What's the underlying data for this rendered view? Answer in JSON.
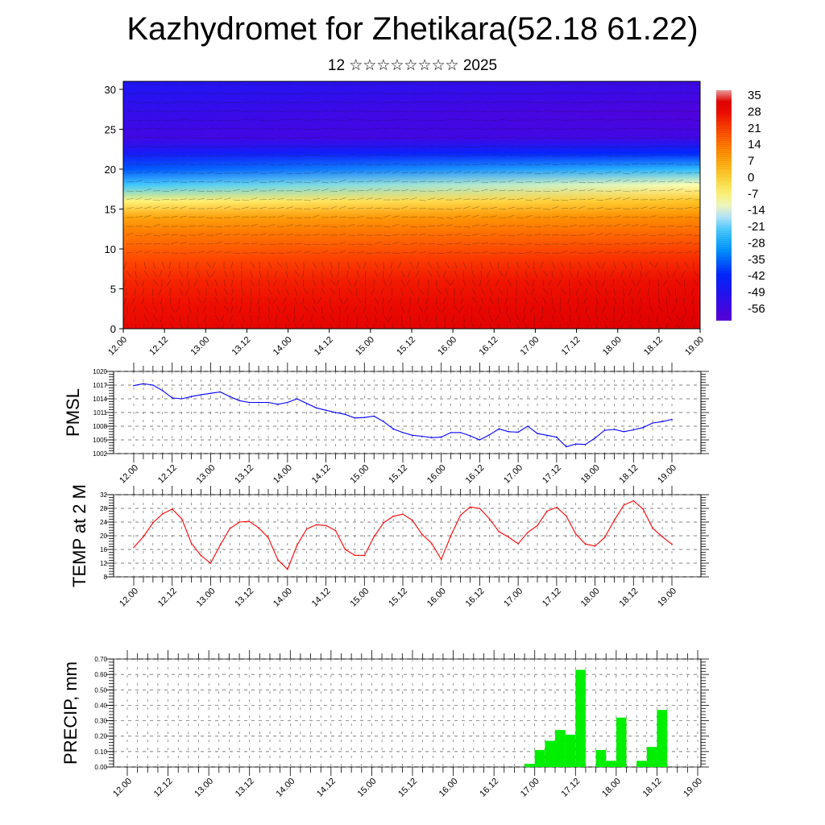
{
  "title": "Kazhydromet for Zhetikara(52.18 61.22)",
  "subtitle": "12 ☆☆☆☆☆☆☆☆ 2025",
  "colors": {
    "pmsl_line": "#0000ff",
    "temp_line": "#ff0000",
    "precip_bar": "#00ee00",
    "grid": "#555555"
  },
  "chart_data": [
    {
      "type": "heatmap",
      "y_ticks": [
        "0",
        "5",
        "10",
        "15",
        "20",
        "25",
        "30"
      ],
      "ylim": [
        0,
        31
      ],
      "x_ticks": [
        "12.00",
        "12.12",
        "13.00",
        "13.12",
        "14.00",
        "14.12",
        "15.00",
        "15.12",
        "16.00",
        "16.12",
        "17.00",
        "17.12",
        "18.00",
        "18.12",
        "19.00"
      ],
      "colorbar_labels": [
        "35",
        "28",
        "21",
        "14",
        "7",
        "0",
        "-7",
        "-14",
        "-21",
        "-28",
        "-35",
        "-42",
        "-49",
        "-56"
      ],
      "colorbar_range": [
        -60,
        38
      ],
      "levels_y": [
        0,
        3,
        6,
        9,
        12,
        14,
        16,
        18,
        20,
        22,
        24,
        27,
        30
      ],
      "values_left": [
        31,
        28,
        25,
        20,
        14,
        8,
        -6,
        -22,
        -36,
        -46,
        -55,
        -52,
        -48
      ],
      "values_right": [
        34,
        32,
        29,
        24,
        17,
        12,
        3,
        -10,
        -24,
        -40,
        -55,
        -58,
        -54
      ]
    },
    {
      "type": "line",
      "ylabel": "PMSL",
      "y_ticks": [
        "1002",
        "1005",
        "1008",
        "1011",
        "1014",
        "1017",
        "1020"
      ],
      "ylim": [
        1002,
        1020
      ],
      "x_ticks": [
        "12.00",
        "12.12",
        "13.00",
        "13.12",
        "14.00",
        "14.12",
        "15.00",
        "15.12",
        "16.00",
        "16.12",
        "17.00",
        "17.12",
        "18.00",
        "18.12",
        "19.00"
      ],
      "x_step_hours": 3,
      "values": [
        1016.9,
        1017.3,
        1017.0,
        1015.8,
        1014.2,
        1014.0,
        1014.5,
        1014.9,
        1015.2,
        1015.5,
        1014.5,
        1013.6,
        1013.2,
        1013.2,
        1013.2,
        1012.8,
        1013.2,
        1014.0,
        1013.0,
        1012.0,
        1011.5,
        1011.0,
        1010.6,
        1009.8,
        1009.9,
        1010.2,
        1009.0,
        1007.4,
        1006.6,
        1006.0,
        1005.8,
        1005.5,
        1005.6,
        1006.6,
        1006.6,
        1005.9,
        1005.0,
        1006.1,
        1007.4,
        1006.8,
        1006.7,
        1008.0,
        1006.4,
        1006.0,
        1005.6,
        1003.5,
        1004.1,
        1004.0,
        1005.4,
        1007.1,
        1007.3,
        1006.8,
        1007.2,
        1007.7,
        1008.7,
        1009.0,
        1009.5
      ]
    },
    {
      "type": "line",
      "ylabel": "TEMP at 2 M",
      "y_ticks": [
        "8",
        "12",
        "16",
        "20",
        "24",
        "28",
        "32"
      ],
      "ylim": [
        8,
        32
      ],
      "x_ticks": [
        "12.00",
        "12.12",
        "13.00",
        "13.12",
        "14.00",
        "14.12",
        "15.00",
        "15.12",
        "16.00",
        "16.12",
        "17.00",
        "17.12",
        "18.00",
        "18.12",
        "19.00"
      ],
      "x_step_hours": 3,
      "values": [
        16.6,
        19.7,
        23.8,
        26.4,
        27.8,
        25.0,
        17.8,
        14.2,
        12.0,
        17.3,
        22.1,
        24.0,
        24.2,
        22.3,
        19.4,
        13.0,
        10.2,
        17.3,
        22.0,
        23.2,
        23.0,
        21.5,
        16.0,
        14.3,
        14.2,
        19.7,
        23.8,
        25.7,
        26.3,
        24.5,
        20.4,
        17.8,
        13.1,
        20.0,
        26.0,
        28.4,
        28.0,
        25.0,
        21.2,
        19.6,
        17.7,
        21.0,
        23.0,
        27.2,
        28.3,
        25.8,
        20.5,
        17.6,
        17.0,
        19.5,
        24.5,
        29.0,
        30.2,
        27.8,
        22.2,
        19.7,
        17.5
      ]
    },
    {
      "type": "bar",
      "ylabel": "PRECIP, mm",
      "y_ticks": [
        "0.00",
        "0.10",
        "0.20",
        "0.30",
        "0.40",
        "0.50",
        "0.60",
        "0.70"
      ],
      "ylim": [
        0,
        0.7
      ],
      "x_ticks": [
        "12.00",
        "12.12",
        "13.00",
        "13.12",
        "14.00",
        "14.12",
        "15.00",
        "15.12",
        "16.00",
        "16.12",
        "17.00",
        "17.12",
        "18.00",
        "18.12",
        "19.00"
      ],
      "x_step_hours": 3,
      "values": [
        0,
        0,
        0,
        0,
        0,
        0,
        0,
        0,
        0,
        0,
        0,
        0,
        0,
        0,
        0,
        0,
        0,
        0,
        0,
        0,
        0,
        0,
        0,
        0,
        0,
        0,
        0,
        0,
        0,
        0,
        0,
        0,
        0,
        0,
        0,
        0,
        0,
        0,
        0,
        0.02,
        0.11,
        0.17,
        0.24,
        0.21,
        0.63,
        0,
        0.11,
        0.04,
        0.32,
        0,
        0.04,
        0.13,
        0.37,
        0,
        0,
        0,
        0
      ]
    }
  ]
}
